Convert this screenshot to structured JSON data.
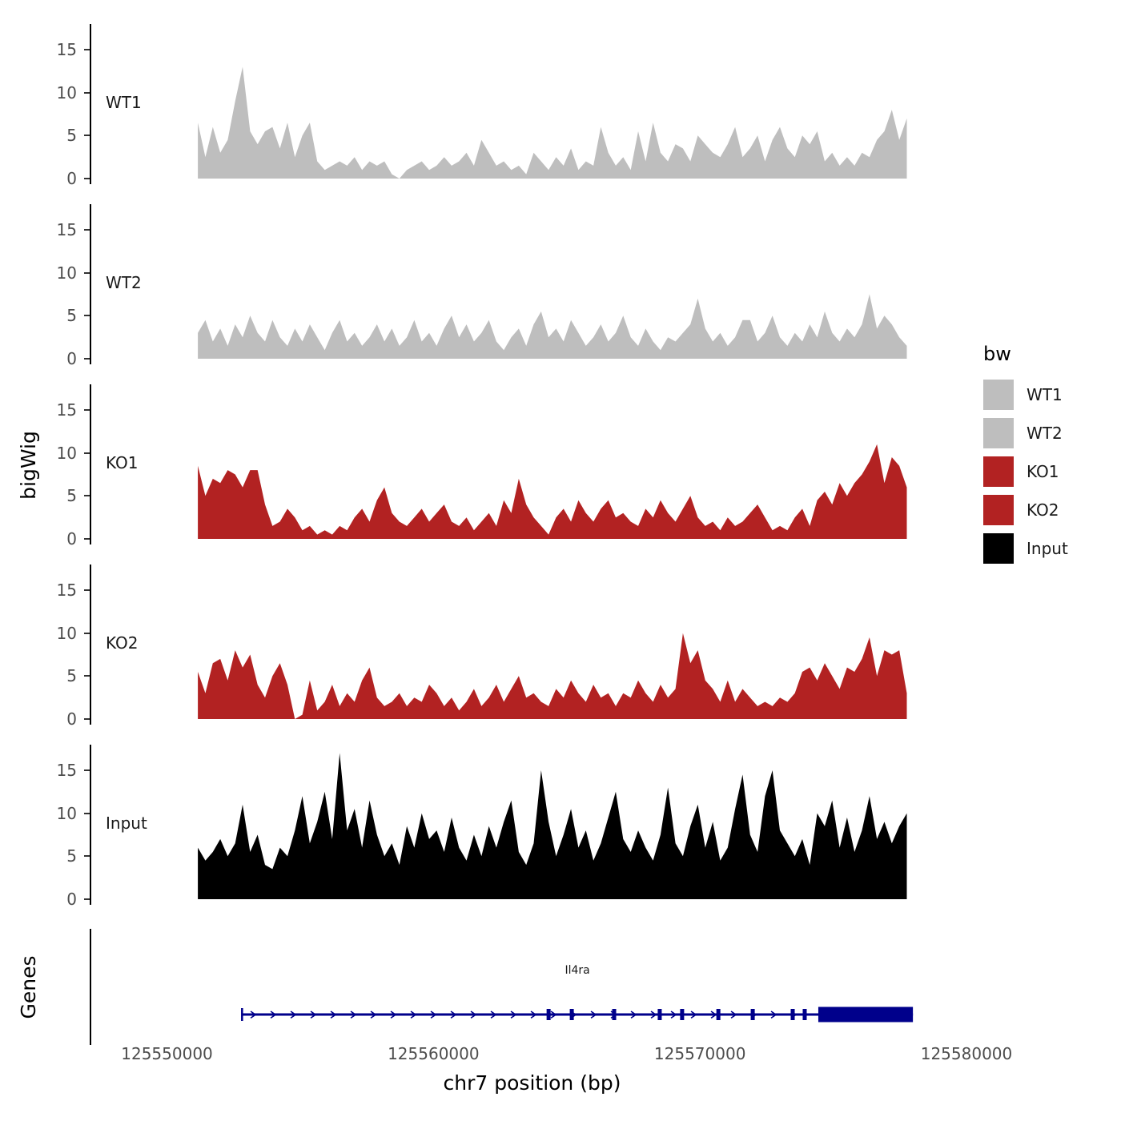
{
  "legend": {
    "title": "bw",
    "items": [
      {
        "label": "WT1",
        "color": "#BEBEBE"
      },
      {
        "label": "WT2",
        "color": "#BEBEBE"
      },
      {
        "label": "KO1",
        "color": "#B22222"
      },
      {
        "label": "KO2",
        "color": "#B22222"
      },
      {
        "label": "Input",
        "color": "#000000"
      }
    ]
  },
  "chart_data": {
    "type": "area",
    "title": "",
    "xlabel": "chr7 position (bp)",
    "ylabel": "bigWig",
    "genes_label": "Genes",
    "x_domain": [
      125547100,
      125580300
    ],
    "x_start": 125551100,
    "x_end": 125577700,
    "ylim": [
      0,
      17.9
    ],
    "y_ticks": [
      0,
      5,
      10,
      15
    ],
    "x_ticks": [
      {
        "pos": 125550000,
        "label": "125550000"
      },
      {
        "pos": 125560000,
        "label": "125560000"
      },
      {
        "pos": 125570000,
        "label": "125570000"
      },
      {
        "pos": 125580000,
        "label": "125580000"
      }
    ],
    "tracks": [
      {
        "name": "WT1",
        "color": "#BEBEBE",
        "values": [
          6.5,
          2.5,
          6.0,
          3.0,
          4.5,
          9.0,
          13.0,
          5.5,
          4.0,
          5.5,
          6.0,
          3.5,
          6.5,
          2.5,
          5.0,
          6.5,
          2.0,
          1.0,
          1.5,
          2.0,
          1.5,
          2.5,
          1.0,
          2.0,
          1.5,
          2.0,
          0.5,
          0.0,
          1.0,
          1.5,
          2.0,
          1.0,
          1.5,
          2.5,
          1.5,
          2.0,
          3.0,
          1.5,
          4.5,
          3.0,
          1.5,
          2.0,
          1.0,
          1.5,
          0.5,
          3.0,
          2.0,
          1.0,
          2.5,
          1.5,
          3.5,
          1.0,
          2.0,
          1.5,
          6.0,
          3.0,
          1.5,
          2.5,
          1.0,
          5.5,
          2.0,
          6.5,
          3.0,
          2.0,
          4.0,
          3.5,
          2.0,
          5.0,
          4.0,
          3.0,
          2.5,
          4.0,
          6.0,
          2.5,
          3.5,
          5.0,
          2.0,
          4.5,
          6.0,
          3.5,
          2.5,
          5.0,
          4.0,
          5.5,
          2.0,
          3.0,
          1.5,
          2.5,
          1.5,
          3.0,
          2.5,
          4.5,
          5.5,
          8.0,
          4.5,
          7.0
        ]
      },
      {
        "name": "WT2",
        "color": "#BEBEBE",
        "values": [
          3.0,
          4.5,
          2.0,
          3.5,
          1.5,
          4.0,
          2.5,
          5.0,
          3.0,
          2.0,
          4.5,
          2.5,
          1.5,
          3.5,
          2.0,
          4.0,
          2.5,
          1.0,
          3.0,
          4.5,
          2.0,
          3.0,
          1.5,
          2.5,
          4.0,
          2.0,
          3.5,
          1.5,
          2.5,
          4.5,
          2.0,
          3.0,
          1.5,
          3.5,
          5.0,
          2.5,
          4.0,
          2.0,
          3.0,
          4.5,
          2.0,
          1.0,
          2.5,
          3.5,
          1.5,
          4.0,
          5.5,
          2.5,
          3.5,
          2.0,
          4.5,
          3.0,
          1.5,
          2.5,
          4.0,
          2.0,
          3.0,
          5.0,
          2.5,
          1.5,
          3.5,
          2.0,
          1.0,
          2.5,
          2.0,
          3.0,
          4.0,
          7.0,
          3.5,
          2.0,
          3.0,
          1.5,
          2.5,
          4.5,
          4.5,
          2.0,
          3.0,
          5.0,
          2.5,
          1.5,
          3.0,
          2.0,
          4.0,
          2.5,
          5.5,
          3.0,
          2.0,
          3.5,
          2.5,
          4.0,
          7.5,
          3.5,
          5.0,
          4.0,
          2.5,
          1.5
        ]
      },
      {
        "name": "KO1",
        "color": "#B22222",
        "values": [
          8.5,
          5.0,
          7.0,
          6.5,
          8.0,
          7.5,
          6.0,
          8.0,
          8.0,
          4.0,
          1.5,
          2.0,
          3.5,
          2.5,
          1.0,
          1.5,
          0.5,
          1.0,
          0.5,
          1.5,
          1.0,
          2.5,
          3.5,
          2.0,
          4.5,
          6.0,
          3.0,
          2.0,
          1.5,
          2.5,
          3.5,
          2.0,
          3.0,
          4.0,
          2.0,
          1.5,
          2.5,
          1.0,
          2.0,
          3.0,
          1.5,
          4.5,
          3.0,
          7.0,
          4.0,
          2.5,
          1.5,
          0.5,
          2.5,
          3.5,
          2.0,
          4.5,
          3.0,
          2.0,
          3.5,
          4.5,
          2.5,
          3.0,
          2.0,
          1.5,
          3.5,
          2.5,
          4.5,
          3.0,
          2.0,
          3.5,
          5.0,
          2.5,
          1.5,
          2.0,
          1.0,
          2.5,
          1.5,
          2.0,
          3.0,
          4.0,
          2.5,
          1.0,
          1.5,
          1.0,
          2.5,
          3.5,
          1.5,
          4.5,
          5.5,
          4.0,
          6.5,
          5.0,
          6.5,
          7.5,
          9.0,
          11.0,
          6.5,
          9.5,
          8.5,
          6.0
        ]
      },
      {
        "name": "KO2",
        "color": "#B22222",
        "values": [
          5.5,
          3.0,
          6.5,
          7.0,
          4.5,
          8.0,
          6.0,
          7.5,
          4.0,
          2.5,
          5.0,
          6.5,
          4.0,
          0.0,
          0.5,
          4.5,
          1.0,
          2.0,
          4.0,
          1.5,
          3.0,
          2.0,
          4.5,
          6.0,
          2.5,
          1.5,
          2.0,
          3.0,
          1.5,
          2.5,
          2.0,
          4.0,
          3.0,
          1.5,
          2.5,
          1.0,
          2.0,
          3.5,
          1.5,
          2.5,
          4.0,
          2.0,
          3.5,
          5.0,
          2.5,
          3.0,
          2.0,
          1.5,
          3.5,
          2.5,
          4.5,
          3.0,
          2.0,
          4.0,
          2.5,
          3.0,
          1.5,
          3.0,
          2.5,
          4.5,
          3.0,
          2.0,
          4.0,
          2.5,
          3.5,
          10.0,
          6.5,
          8.0,
          4.5,
          3.5,
          2.0,
          4.5,
          2.0,
          3.5,
          2.5,
          1.5,
          2.0,
          1.5,
          2.5,
          2.0,
          3.0,
          5.5,
          6.0,
          4.5,
          6.5,
          5.0,
          3.5,
          6.0,
          5.5,
          7.0,
          9.5,
          5.0,
          8.0,
          7.5,
          8.0,
          3.0
        ]
      },
      {
        "name": "Input",
        "color": "#000000",
        "values": [
          6.0,
          4.5,
          5.5,
          7.0,
          5.0,
          6.5,
          11.0,
          5.5,
          7.5,
          4.0,
          3.5,
          6.0,
          5.0,
          8.0,
          12.0,
          6.5,
          9.0,
          12.5,
          7.0,
          17.0,
          8.0,
          10.5,
          6.0,
          11.5,
          7.5,
          5.0,
          6.5,
          4.0,
          8.5,
          6.0,
          10.0,
          7.0,
          8.0,
          5.5,
          9.5,
          6.0,
          4.5,
          7.5,
          5.0,
          8.5,
          6.0,
          9.0,
          11.5,
          5.5,
          4.0,
          6.5,
          15.0,
          9.0,
          5.0,
          7.5,
          10.5,
          6.0,
          8.0,
          4.5,
          6.5,
          9.5,
          12.5,
          7.0,
          5.5,
          8.0,
          6.0,
          4.5,
          7.5,
          13.0,
          6.5,
          5.0,
          8.5,
          11.0,
          6.0,
          9.0,
          4.5,
          6.0,
          10.5,
          14.5,
          7.5,
          5.5,
          12.0,
          15.0,
          8.0,
          6.5,
          5.0,
          7.0,
          4.0,
          10.0,
          8.5,
          11.5,
          6.0,
          9.5,
          5.5,
          8.0,
          12.0,
          7.0,
          9.0,
          6.5,
          8.5,
          10.0
        ]
      }
    ],
    "gene": {
      "label": "Il4ra",
      "chrom": "chr7",
      "chrom_start": 125552750,
      "chrom_end": 125577930,
      "strand": "+",
      "thick_start": 125574380,
      "color": "#00008B",
      "exon_marks": [
        125564260,
        125565130,
        125566720,
        125568430,
        125569270,
        125570630,
        125571920,
        125573420,
        125573870
      ]
    }
  }
}
